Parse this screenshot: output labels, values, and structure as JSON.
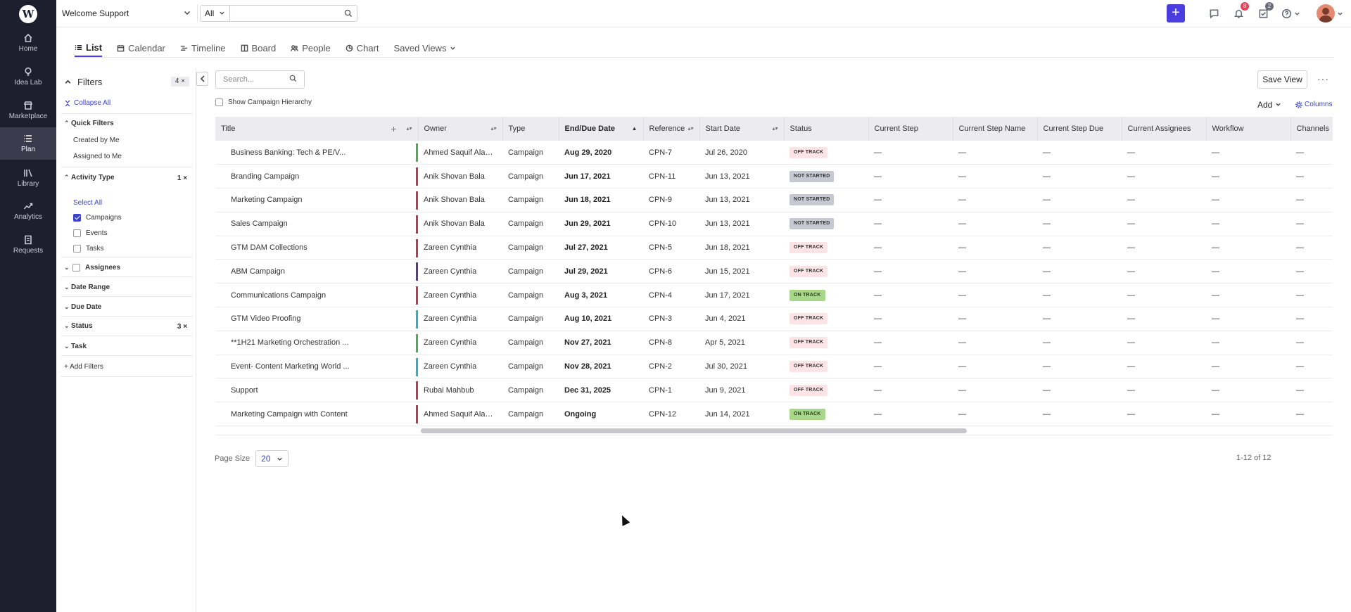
{
  "app": {
    "logo_letter": "W",
    "workspace": "Welcome Support"
  },
  "topbar": {
    "search_scope": "All",
    "search_placeholder": "",
    "notifications_count": "8",
    "tasks_count": "2"
  },
  "leftnav": {
    "items": [
      {
        "label": "Home",
        "icon": "home-icon"
      },
      {
        "label": "Idea Lab",
        "icon": "lightbulb-icon"
      },
      {
        "label": "Marketplace",
        "icon": "store-icon"
      },
      {
        "label": "Plan",
        "icon": "list-icon",
        "active": true
      },
      {
        "label": "Library",
        "icon": "library-icon"
      },
      {
        "label": "Analytics",
        "icon": "trend-icon"
      },
      {
        "label": "Requests",
        "icon": "document-icon"
      }
    ]
  },
  "view_tabs": [
    {
      "label": "List",
      "icon": "list-icon",
      "active": true
    },
    {
      "label": "Calendar",
      "icon": "calendar-icon"
    },
    {
      "label": "Timeline",
      "icon": "timeline-icon"
    },
    {
      "label": "Board",
      "icon": "board-icon"
    },
    {
      "label": "People",
      "icon": "people-icon"
    },
    {
      "label": "Chart",
      "icon": "pie-icon"
    },
    {
      "label": "Saved Views",
      "icon": "chevron-down-icon"
    }
  ],
  "filters": {
    "title": "Filters",
    "count": "4",
    "collapse_all": "Collapse All",
    "quick_filters": {
      "label": "Quick Filters",
      "items": [
        "Created by Me",
        "Assigned to Me"
      ]
    },
    "activity_type": {
      "label": "Activity Type",
      "count": "1",
      "select_all": "Select All",
      "options": [
        {
          "label": "Campaigns",
          "checked": true
        },
        {
          "label": "Events",
          "checked": false
        },
        {
          "label": "Tasks",
          "checked": false
        }
      ]
    },
    "assignees": "Assignees",
    "date_range": "Date Range",
    "due_date": "Due Date",
    "status": {
      "label": "Status",
      "count": "3"
    },
    "task": "Task",
    "add_filters": "+ Add Filters"
  },
  "toolbar": {
    "search_placeholder": "Search...",
    "hierarchy_label": "Show Campaign Hierarchy",
    "save_view": "Save View",
    "add": "Add",
    "columns": "Columns"
  },
  "table": {
    "columns": [
      "Title",
      "Owner",
      "Type",
      "End/Due Date",
      "Reference",
      "Start Date",
      "Status",
      "Current Step",
      "Current Step Name",
      "Current Step Due",
      "Current Assignees",
      "Workflow",
      "Channels"
    ],
    "rows": [
      {
        "title": "Business Banking: Tech & PE/V...",
        "owner": "Ahmed Saquif Alam Anik",
        "type": "Campaign",
        "due": "Aug 29, 2020",
        "ref": "CPN-7",
        "start": "Jul 26, 2020",
        "status": "OFF TRACK",
        "bar": "#4caf50"
      },
      {
        "title": "Branding Campaign",
        "owner": "Anik Shovan Bala",
        "type": "Campaign",
        "due": "Jun 17, 2021",
        "ref": "CPN-11",
        "start": "Jun 13, 2021",
        "status": "NOT STARTED",
        "bar": "#c0394b"
      },
      {
        "title": "Marketing Campaign",
        "owner": "Anik Shovan Bala",
        "type": "Campaign",
        "due": "Jun 18, 2021",
        "ref": "CPN-9",
        "start": "Jun 13, 2021",
        "status": "NOT STARTED",
        "bar": "#c0394b"
      },
      {
        "title": "Sales Campaign",
        "owner": "Anik Shovan Bala",
        "type": "Campaign",
        "due": "Jun 29, 2021",
        "ref": "CPN-10",
        "start": "Jun 13, 2021",
        "status": "NOT STARTED",
        "bar": "#c0394b"
      },
      {
        "title": "GTM DAM Collections",
        "owner": "Zareen Cynthia",
        "type": "Campaign",
        "due": "Jul 27, 2021",
        "ref": "CPN-5",
        "start": "Jun 18, 2021",
        "status": "OFF TRACK",
        "bar": "#c0394b"
      },
      {
        "title": "ABM Campaign",
        "owner": "Zareen Cynthia",
        "type": "Campaign",
        "due": "Jul 29, 2021",
        "ref": "CPN-6",
        "start": "Jun 15, 2021",
        "status": "OFF TRACK",
        "bar": "#5b3a8c"
      },
      {
        "title": "Communications Campaign",
        "owner": "Zareen Cynthia",
        "type": "Campaign",
        "due": "Aug 3, 2021",
        "ref": "CPN-4",
        "start": "Jun 17, 2021",
        "status": "ON TRACK",
        "bar": "#c0394b"
      },
      {
        "title": "GTM Video Proofing",
        "owner": "Zareen Cynthia",
        "type": "Campaign",
        "due": "Aug 10, 2021",
        "ref": "CPN-3",
        "start": "Jun 4, 2021",
        "status": "OFF TRACK",
        "bar": "#2bb3c0"
      },
      {
        "title": "**1H21 Marketing Orchestration ...",
        "owner": "Zareen Cynthia",
        "type": "Campaign",
        "due": "Nov 27, 2021",
        "ref": "CPN-8",
        "start": "Apr 5, 2021",
        "status": "OFF TRACK",
        "bar": "#4caf50"
      },
      {
        "title": "Event- Content Marketing World ...",
        "owner": "Zareen Cynthia",
        "type": "Campaign",
        "due": "Nov 28, 2021",
        "ref": "CPN-2",
        "start": "Jul 30, 2021",
        "status": "OFF TRACK",
        "bar": "#2bb3c0"
      },
      {
        "title": "Support",
        "owner": "Rubai Mahbub",
        "type": "Campaign",
        "due": "Dec 31, 2025",
        "ref": "CPN-1",
        "start": "Jun 9, 2021",
        "status": "OFF TRACK",
        "bar": "#c0394b"
      },
      {
        "title": "Marketing Campaign with Content",
        "owner": "Ahmed Saquif Alam Anik",
        "type": "Campaign",
        "due": "Ongoing",
        "ref": "CPN-12",
        "start": "Jun 14, 2021",
        "status": "ON TRACK",
        "bar": "#c0394b"
      }
    ],
    "empty_cell": "—"
  },
  "status_colors": {
    "OFF TRACK": {
      "bg": "#fbe3e6",
      "fg": "#333333"
    },
    "NOT STARTED": {
      "bg": "#c7c8d2",
      "fg": "#333333"
    },
    "ON TRACK": {
      "bg": "#a9d78a",
      "fg": "#1f3a12"
    }
  },
  "footer": {
    "page_size_label": "Page Size",
    "page_size": "20",
    "range": "1-12 of 12"
  }
}
